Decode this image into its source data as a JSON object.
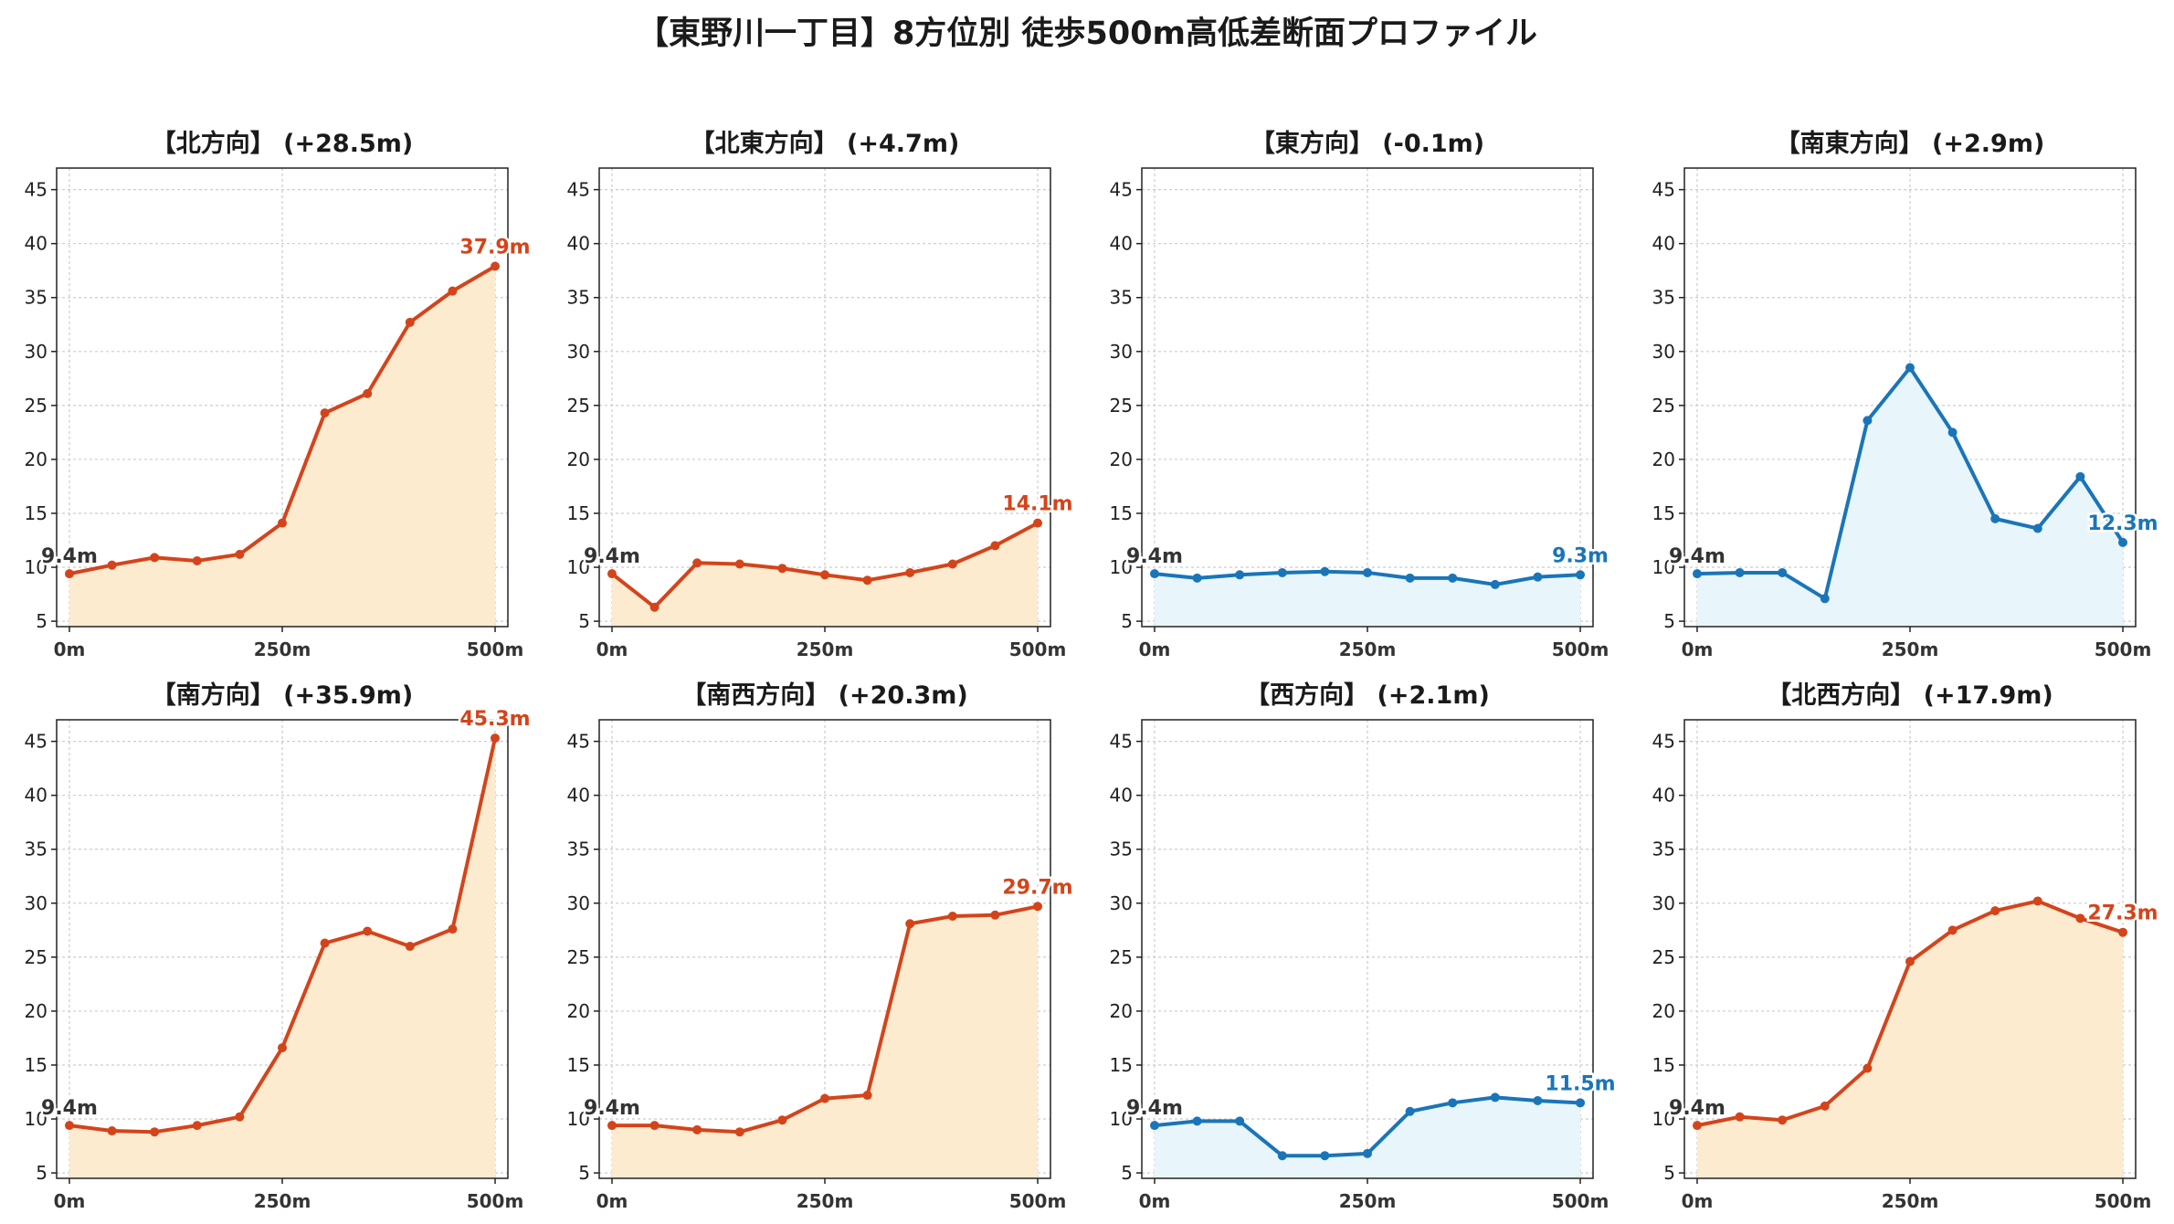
{
  "title": "【東野川一丁目】8方位別 徒歩500m高低差断面プロファイル",
  "colors": {
    "up_line": "#d4441a",
    "up_fill": "#fdebd0",
    "down_line": "#1a75b8",
    "down_fill": "#e8f5fb",
    "start_label": "#333333",
    "grid": "#cccccc"
  },
  "chart_data": [
    {
      "type": "area",
      "title": "【北方向】 (+28.5m)",
      "trend": "up",
      "x": [
        0,
        50,
        100,
        150,
        200,
        250,
        300,
        350,
        400,
        450,
        500
      ],
      "values": [
        9.4,
        10.2,
        10.9,
        10.6,
        11.2,
        14.1,
        24.3,
        26.1,
        32.7,
        35.6,
        37.9
      ],
      "start_label": "9.4m",
      "end_label": "37.9m",
      "xticks": [
        "0m",
        "250m",
        "500m"
      ],
      "yticks": [
        "5",
        "10",
        "15",
        "20",
        "25",
        "30",
        "35",
        "40",
        "45"
      ],
      "ylim": [
        4.5,
        47
      ],
      "grid": true
    },
    {
      "type": "area",
      "title": "【北東方向】 (+4.7m)",
      "trend": "up",
      "x": [
        0,
        50,
        100,
        150,
        200,
        250,
        300,
        350,
        400,
        450,
        500
      ],
      "values": [
        9.4,
        6.3,
        10.4,
        10.3,
        9.9,
        9.3,
        8.8,
        9.5,
        10.3,
        12.0,
        14.1
      ],
      "start_label": "9.4m",
      "end_label": "14.1m",
      "xticks": [
        "0m",
        "250m",
        "500m"
      ],
      "yticks": [
        "5",
        "10",
        "15",
        "20",
        "25",
        "30",
        "35",
        "40",
        "45"
      ],
      "ylim": [
        4.5,
        47
      ],
      "grid": true
    },
    {
      "type": "area",
      "title": "【東方向】 (-0.1m)",
      "trend": "down",
      "x": [
        0,
        50,
        100,
        150,
        200,
        250,
        300,
        350,
        400,
        450,
        500
      ],
      "values": [
        9.4,
        9.0,
        9.3,
        9.5,
        9.6,
        9.5,
        9.0,
        9.0,
        8.4,
        9.1,
        9.3
      ],
      "start_label": "9.4m",
      "end_label": "9.3m",
      "xticks": [
        "0m",
        "250m",
        "500m"
      ],
      "yticks": [
        "5",
        "10",
        "15",
        "20",
        "25",
        "30",
        "35",
        "40",
        "45"
      ],
      "ylim": [
        4.5,
        47
      ],
      "grid": true
    },
    {
      "type": "area",
      "title": "【南東方向】 (+2.9m)",
      "trend": "down",
      "x": [
        0,
        50,
        100,
        150,
        200,
        250,
        300,
        350,
        400,
        450,
        500
      ],
      "values": [
        9.4,
        9.5,
        9.5,
        7.1,
        23.6,
        28.5,
        22.5,
        14.5,
        13.6,
        18.4,
        12.3
      ],
      "start_label": "9.4m",
      "end_label": "12.3m",
      "xticks": [
        "0m",
        "250m",
        "500m"
      ],
      "yticks": [
        "5",
        "10",
        "15",
        "20",
        "25",
        "30",
        "35",
        "40",
        "45"
      ],
      "ylim": [
        4.5,
        47
      ],
      "grid": true
    },
    {
      "type": "area",
      "title": "【南方向】 (+35.9m)",
      "trend": "up",
      "x": [
        0,
        50,
        100,
        150,
        200,
        250,
        300,
        350,
        400,
        450,
        500
      ],
      "values": [
        9.4,
        8.9,
        8.8,
        9.4,
        10.2,
        16.6,
        26.3,
        27.4,
        26.0,
        27.6,
        45.3
      ],
      "start_label": "9.4m",
      "end_label": "45.3m",
      "xticks": [
        "0m",
        "250m",
        "500m"
      ],
      "yticks": [
        "5",
        "10",
        "15",
        "20",
        "25",
        "30",
        "35",
        "40",
        "45"
      ],
      "ylim": [
        4.5,
        47
      ],
      "grid": true
    },
    {
      "type": "area",
      "title": "【南西方向】 (+20.3m)",
      "trend": "up",
      "x": [
        0,
        50,
        100,
        150,
        200,
        250,
        300,
        350,
        400,
        450,
        500
      ],
      "values": [
        9.4,
        9.4,
        9.0,
        8.8,
        9.9,
        11.9,
        12.2,
        28.1,
        28.8,
        28.9,
        29.7
      ],
      "start_label": "9.4m",
      "end_label": "29.7m",
      "xticks": [
        "0m",
        "250m",
        "500m"
      ],
      "yticks": [
        "5",
        "10",
        "15",
        "20",
        "25",
        "30",
        "35",
        "40",
        "45"
      ],
      "ylim": [
        4.5,
        47
      ],
      "grid": true
    },
    {
      "type": "area",
      "title": "【西方向】 (+2.1m)",
      "trend": "down",
      "x": [
        0,
        50,
        100,
        150,
        200,
        250,
        300,
        350,
        400,
        450,
        500
      ],
      "values": [
        9.4,
        9.8,
        9.8,
        6.6,
        6.6,
        6.8,
        10.7,
        11.5,
        12.0,
        11.7,
        11.5
      ],
      "start_label": "9.4m",
      "end_label": "11.5m",
      "xticks": [
        "0m",
        "250m",
        "500m"
      ],
      "yticks": [
        "5",
        "10",
        "15",
        "20",
        "25",
        "30",
        "35",
        "40",
        "45"
      ],
      "ylim": [
        4.5,
        47
      ],
      "grid": true
    },
    {
      "type": "area",
      "title": "【北西方向】 (+17.9m)",
      "trend": "up",
      "x": [
        0,
        50,
        100,
        150,
        200,
        250,
        300,
        350,
        400,
        450,
        500
      ],
      "values": [
        9.4,
        10.2,
        9.9,
        11.2,
        14.7,
        24.6,
        27.5,
        29.3,
        30.2,
        28.6,
        27.3
      ],
      "start_label": "9.4m",
      "end_label": "27.3m",
      "xticks": [
        "0m",
        "250m",
        "500m"
      ],
      "yticks": [
        "5",
        "10",
        "15",
        "20",
        "25",
        "30",
        "35",
        "40",
        "45"
      ],
      "ylim": [
        4.5,
        47
      ],
      "grid": true
    }
  ]
}
